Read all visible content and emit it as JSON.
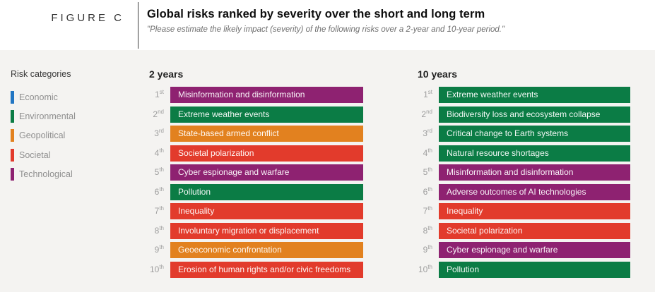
{
  "figure": {
    "label": "FIGURE C",
    "title": "Global risks ranked by severity over the short and long term",
    "subtitle": "\"Please estimate the likely impact (severity) of the following risks over a 2-year and 10-year period.\""
  },
  "legend": {
    "title": "Risk categories",
    "items": [
      {
        "label": "Economic",
        "color": "#2276c3"
      },
      {
        "label": "Environmental",
        "color": "#0b7c45"
      },
      {
        "label": "Geopolitical",
        "color": "#e2811f"
      },
      {
        "label": "Societal",
        "color": "#e23b2c"
      },
      {
        "label": "Technological",
        "color": "#8e2271"
      }
    ]
  },
  "colors": {
    "panel_background": "#f4f3f1",
    "bar_text": "#ffffff",
    "rank_text": "#9e9e9e"
  },
  "chart_data": {
    "type": "table",
    "title": "Global risks ranked by severity over the short and long term",
    "subtitle": "\"Please estimate the likely impact (severity) of the following risks over a 2-year and 10-year period.\"",
    "legend_title": "Risk categories",
    "legend_categories": [
      "Economic",
      "Environmental",
      "Geopolitical",
      "Societal",
      "Technological"
    ],
    "columns": [
      {
        "header": "2 years",
        "rows": [
          {
            "rank": "1",
            "ordinal": "st",
            "label": "Misinformation and disinformation",
            "category": "Technological"
          },
          {
            "rank": "2",
            "ordinal": "nd",
            "label": "Extreme weather events",
            "category": "Environmental"
          },
          {
            "rank": "3",
            "ordinal": "rd",
            "label": "State-based armed conflict",
            "category": "Geopolitical"
          },
          {
            "rank": "4",
            "ordinal": "th",
            "label": "Societal polarization",
            "category": "Societal"
          },
          {
            "rank": "5",
            "ordinal": "th",
            "label": "Cyber espionage and warfare",
            "category": "Technological"
          },
          {
            "rank": "6",
            "ordinal": "th",
            "label": "Pollution",
            "category": "Environmental"
          },
          {
            "rank": "7",
            "ordinal": "th",
            "label": "Inequality",
            "category": "Societal"
          },
          {
            "rank": "8",
            "ordinal": "th",
            "label": "Involuntary migration or displacement",
            "category": "Societal"
          },
          {
            "rank": "9",
            "ordinal": "th",
            "label": "Geoeconomic confrontation",
            "category": "Geopolitical"
          },
          {
            "rank": "10",
            "ordinal": "th",
            "label": "Erosion of human rights and/or civic freedoms",
            "category": "Societal"
          }
        ]
      },
      {
        "header": "10 years",
        "rows": [
          {
            "rank": "1",
            "ordinal": "st",
            "label": "Extreme weather events",
            "category": "Environmental"
          },
          {
            "rank": "2",
            "ordinal": "nd",
            "label": "Biodiversity loss and ecosystem collapse",
            "category": "Environmental"
          },
          {
            "rank": "3",
            "ordinal": "rd",
            "label": "Critical change to Earth systems",
            "category": "Environmental"
          },
          {
            "rank": "4",
            "ordinal": "th",
            "label": "Natural resource shortages",
            "category": "Environmental"
          },
          {
            "rank": "5",
            "ordinal": "th",
            "label": "Misinformation and disinformation",
            "category": "Technological"
          },
          {
            "rank": "6",
            "ordinal": "th",
            "label": "Adverse outcomes of AI technologies",
            "category": "Technological"
          },
          {
            "rank": "7",
            "ordinal": "th",
            "label": "Inequality",
            "category": "Societal"
          },
          {
            "rank": "8",
            "ordinal": "th",
            "label": "Societal polarization",
            "category": "Societal"
          },
          {
            "rank": "9",
            "ordinal": "th",
            "label": "Cyber espionage and warfare",
            "category": "Technological"
          },
          {
            "rank": "10",
            "ordinal": "th",
            "label": "Pollution",
            "category": "Environmental"
          }
        ]
      }
    ]
  }
}
